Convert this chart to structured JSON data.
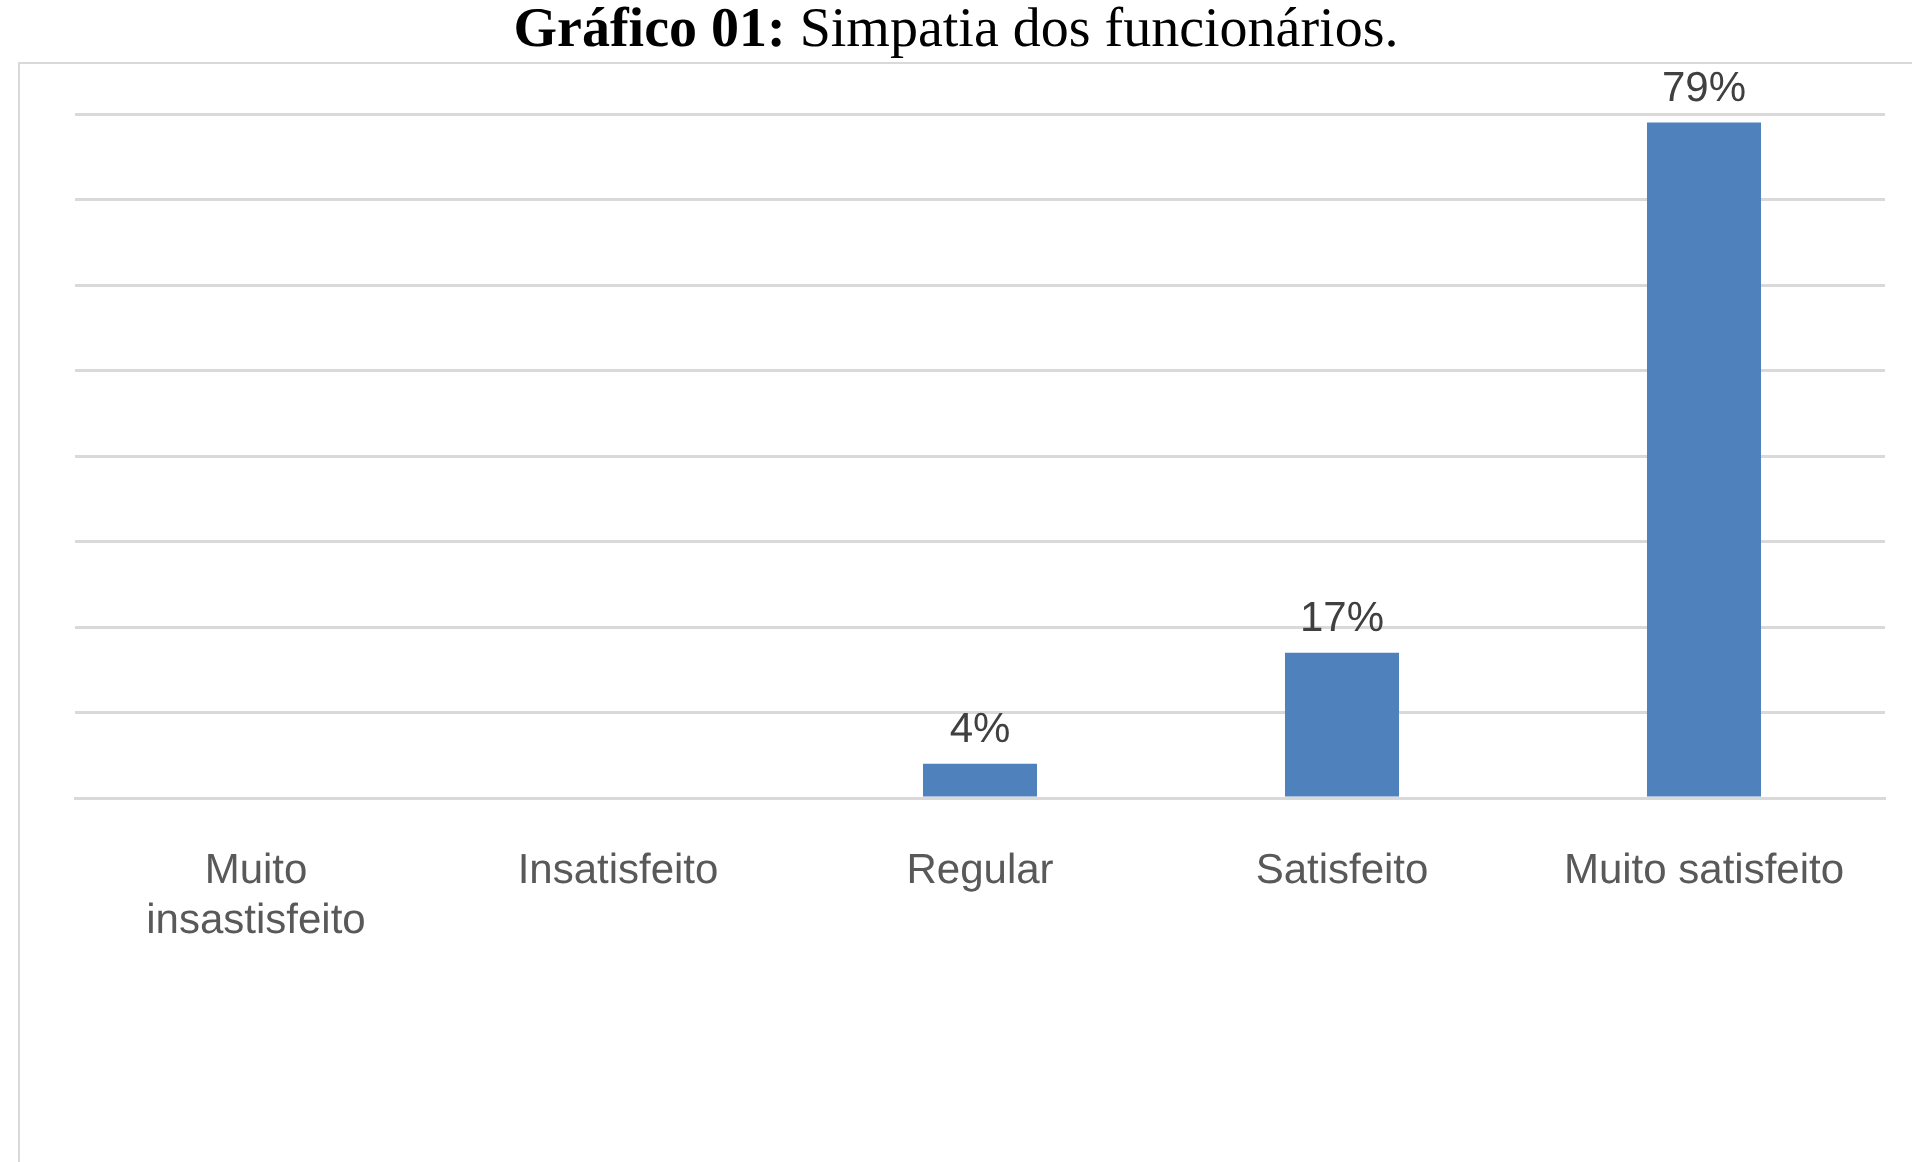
{
  "chart_data": {
    "type": "bar",
    "title": "Gráfico 01: Simpatia dos funcionários.",
    "categories": [
      "Muito insastisfeito",
      "Insatisfeito",
      "Regular",
      "Satisfeito",
      "Muito satisfeito"
    ],
    "values": [
      0,
      0,
      4,
      17,
      79
    ],
    "value_labels": [
      null,
      null,
      "4%",
      "17%",
      "79%"
    ],
    "color": "#4f81bd",
    "ylim": [
      0,
      80
    ],
    "yticks": [
      {
        "value": 0,
        "label": null
      },
      {
        "value": 10,
        "label": null
      },
      {
        "value": 20,
        "label": null
      },
      {
        "value": 30,
        "label": null
      },
      {
        "value": 40,
        "label": null
      },
      {
        "value": 50,
        "label": null
      },
      {
        "value": 60,
        "label": null
      },
      {
        "value": 70,
        "label": null
      },
      {
        "value": 80,
        "label": null
      }
    ],
    "grid": "y",
    "tick_labels": "x"
  }
}
